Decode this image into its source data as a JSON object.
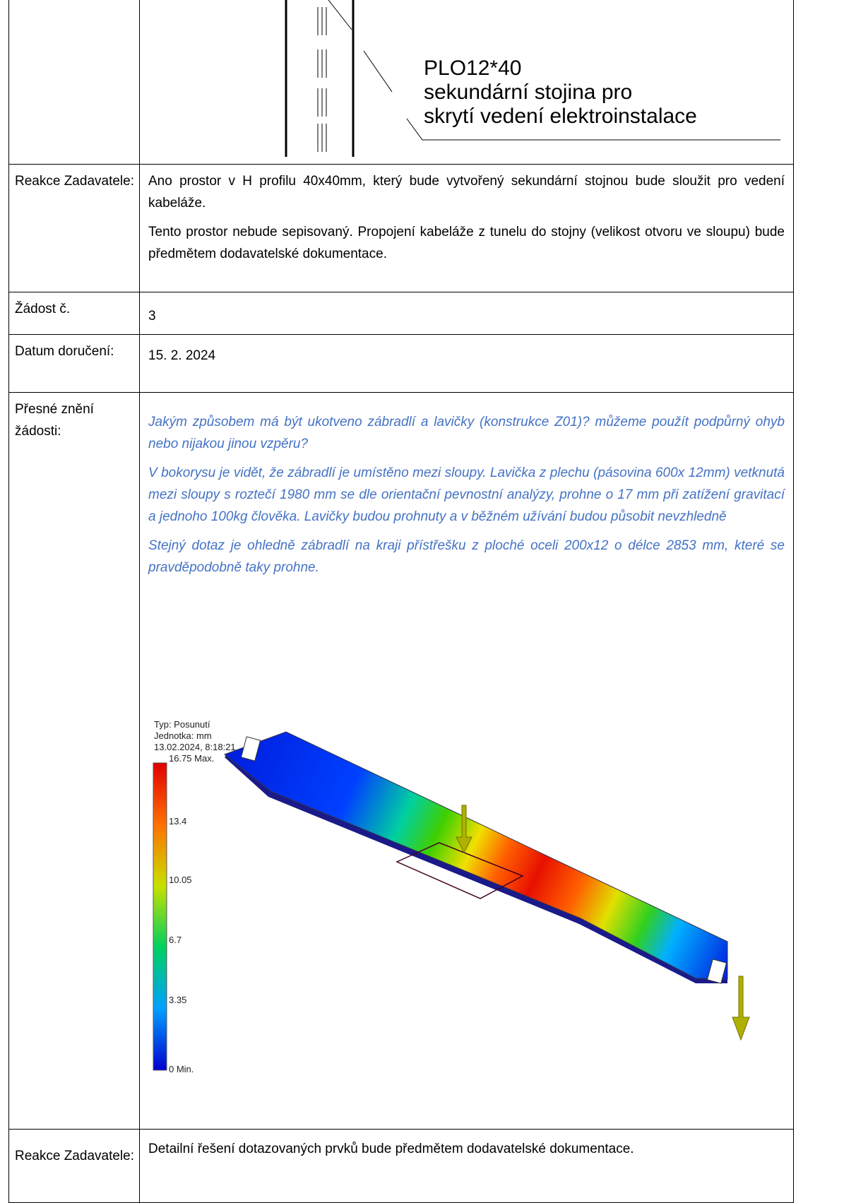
{
  "drawing": {
    "lines": [
      "PLO12*40",
      "sekundární stojina pro",
      "skrytí vedení elektroinstalace"
    ]
  },
  "rows": [
    {
      "label": "Reakce Zadavatele:",
      "paragraphs": [
        "Ano prostor v H profilu 40x40mm, který bude vytvořený sekundární stojnou bude sloužit pro vedení kabeláže.",
        "Tento prostor nebude sepisovaný. Propojení kabeláže z tunelu do stojny (velikost otvoru ve sloupu) bude předmětem dodavatelské dokumentace."
      ]
    },
    {
      "label": "Žádost č.",
      "paragraphs": [
        "3"
      ]
    },
    {
      "label": "Datum doručení:",
      "paragraphs": [
        "15. 2. 2024"
      ]
    },
    {
      "label": "Přesné znění žádosti:",
      "paragraphs": [
        "Jakým způsobem má být ukotveno zábradlí a lavičky (konstrukce Z01)? můžeme použít podpůrný ohyb nebo nijakou jinou vzpěru?",
        "V bokorysu je vidět, že zábradlí je umístěno mezi sloupy. Lavička z plechu (pásovina 600x 12mm) vetknutá mezi sloupy s roztečí 1980 mm se dle orientační pevnostní analýzy, prohne o 17 mm při zatížení gravitací a jednoho 100kg člověka. Lavičky budou prohnuty a v běžném užívání budou působit nevzhledně",
        "Stejný dotaz je ohledně zábradlí na kraji přístřešku z ploché oceli 200x12 o délce 2853 mm, které se pravděpodobně taky prohne."
      ]
    },
    {
      "label": "Reakce Zadavatele:",
      "paragraphs": [
        "Detailní řešení dotazovaných prvků bude předmětem dodavatelské dokumentace."
      ]
    }
  ],
  "figure": {
    "info": [
      "Typ: Posunutí",
      "Jednotka: mm",
      "13.02.2024, 8:18:21"
    ],
    "legend": [
      "16.75 Max.",
      "13.4",
      "10.05",
      "6.7",
      "3.35",
      "0 Min."
    ]
  }
}
